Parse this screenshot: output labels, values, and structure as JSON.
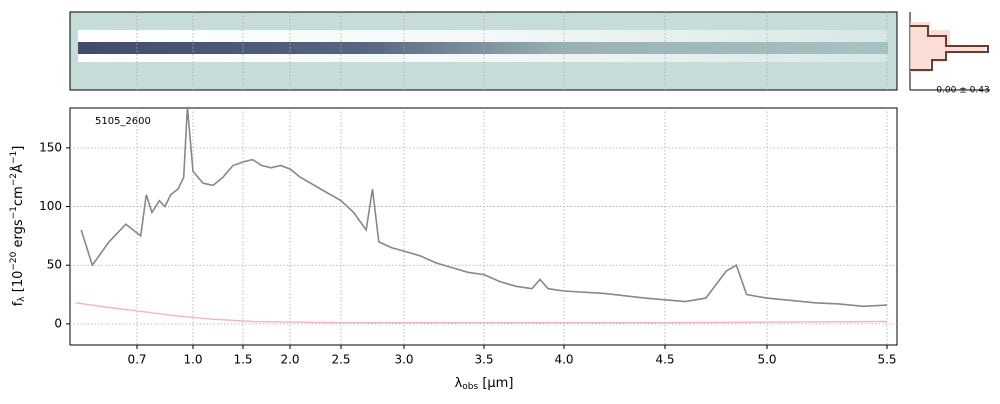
{
  "chart_data": {
    "type": "line",
    "annotation": "5105_2600",
    "xlabel": [
      "λ",
      "obs",
      " [µm]"
    ],
    "ylabel": [
      "f",
      "λ",
      " [10",
      "−20",
      " ergs",
      "−1",
      "cm",
      "−2",
      "Å",
      "−1",
      "]"
    ],
    "side_label": "0.00 ± 0.43",
    "xlim": [
      0.58,
      5.54
    ],
    "xticks": [
      0.7,
      {
        "value": 1,
        "label": "1.0"
      },
      1.5,
      {
        "value": 2,
        "label": "2.0"
      },
      2.5,
      {
        "value": 3,
        "label": "3.0"
      },
      3.5,
      {
        "value": 4,
        "label": "4.0"
      },
      4.5,
      {
        "value": 5,
        "label": "5.0"
      },
      5.5
    ],
    "ylim": [
      -18,
      184
    ],
    "yticks": [
      0,
      50,
      100,
      150
    ],
    "grid": true,
    "series": [
      {
        "color": "#888888",
        "x": [
          0.6,
          0.62,
          0.65,
          0.68,
          0.72,
          0.75,
          0.78,
          0.82,
          0.85,
          0.88,
          0.92,
          0.95,
          0.97,
          1.0,
          1.1,
          1.2,
          1.3,
          1.4,
          1.5,
          1.6,
          1.7,
          1.8,
          1.9,
          2.0,
          2.1,
          2.2,
          2.3,
          2.4,
          2.5,
          2.6,
          2.7,
          2.75,
          2.8,
          2.9,
          3.0,
          3.1,
          3.2,
          3.3,
          3.4,
          3.5,
          3.6,
          3.7,
          3.8,
          3.85,
          3.9,
          4.0,
          4.2,
          4.4,
          4.6,
          4.7,
          4.8,
          4.85,
          4.9,
          5.0,
          5.1,
          5.2,
          5.3,
          5.4,
          5.5
        ],
        "values": [
          80,
          50,
          70,
          85,
          75,
          110,
          95,
          105,
          100,
          110,
          115,
          125,
          185,
          130,
          120,
          118,
          125,
          135,
          138,
          140,
          135,
          133,
          135,
          132,
          125,
          120,
          115,
          110,
          105,
          95,
          80,
          115,
          70,
          65,
          62,
          58,
          52,
          48,
          44,
          42,
          36,
          32,
          30,
          38,
          30,
          28,
          26,
          22,
          19,
          22,
          45,
          50,
          25,
          22,
          20,
          18,
          17,
          15,
          16
        ]
      },
      {
        "color": "#f4b8b8",
        "x": [
          0.59,
          0.65,
          0.75,
          0.9,
          1.2,
          1.6,
          2.5,
          3.5,
          4.5,
          5.5
        ],
        "values": [
          18,
          14,
          10,
          7,
          4,
          2,
          1,
          1,
          1,
          2
        ]
      }
    ]
  }
}
